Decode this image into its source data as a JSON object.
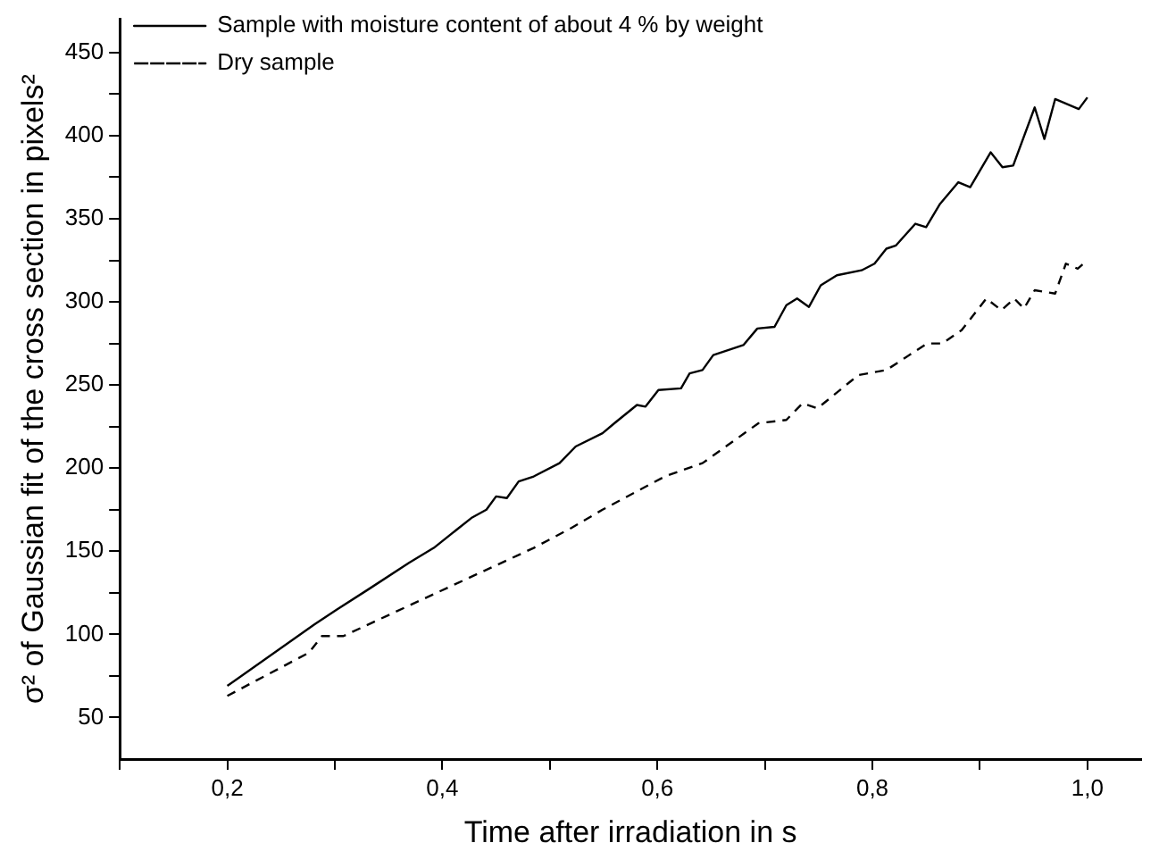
{
  "chart_data": {
    "type": "line",
    "xlabel": "Time after irradiation in s",
    "ylabel": "σ² of Gaussian fit of the cross section in pixels²",
    "xlim": [
      0.1,
      1.05
    ],
    "ylim": [
      25,
      470
    ],
    "xticks": [
      {
        "value": 0.1,
        "label": null
      },
      {
        "value": 0.2,
        "label": "0,2"
      },
      {
        "value": 0.3,
        "label": null
      },
      {
        "value": 0.4,
        "label": "0,4"
      },
      {
        "value": 0.5,
        "label": null
      },
      {
        "value": 0.6,
        "label": "0,6"
      },
      {
        "value": 0.7,
        "label": null
      },
      {
        "value": 0.8,
        "label": "0,8"
      },
      {
        "value": 0.9,
        "label": null
      },
      {
        "value": 1.0,
        "label": "1,0"
      }
    ],
    "yticks": [
      50,
      {
        "value": 75,
        "label": null
      },
      100,
      {
        "value": 125,
        "label": null
      },
      150,
      {
        "value": 175,
        "label": null
      },
      200,
      {
        "value": 225,
        "label": null
      },
      250,
      {
        "value": 275,
        "label": null
      },
      300,
      {
        "value": 325,
        "label": null
      },
      350,
      {
        "value": 375,
        "label": null
      },
      400,
      {
        "value": 425,
        "label": null
      },
      450
    ],
    "grid": false,
    "legend": "top left",
    "marker": "none",
    "series": [
      {
        "name": "Sample with moisture content of about 4 % by weight",
        "color": "#000000",
        "line_style": "solid",
        "x": [
          0.2,
          0.281,
          0.302,
          0.331,
          0.369,
          0.392,
          0.427,
          0.441,
          0.45,
          0.46,
          0.471,
          0.485,
          0.509,
          0.524,
          0.549,
          0.56,
          0.581,
          0.589,
          0.601,
          0.622,
          0.63,
          0.642,
          0.652,
          0.68,
          0.693,
          0.709,
          0.72,
          0.73,
          0.741,
          0.752,
          0.767,
          0.79,
          0.802,
          0.813,
          0.822,
          0.84,
          0.85,
          0.863,
          0.88,
          0.891,
          0.91,
          0.921,
          0.931,
          0.951,
          0.96,
          0.97,
          0.992,
          1.0
        ],
        "values": [
          69,
          106,
          115,
          127,
          143,
          152,
          170,
          175,
          183,
          182,
          192,
          195,
          203,
          213,
          221,
          227,
          238,
          237,
          247,
          248,
          257,
          259,
          268,
          274,
          284,
          285,
          298,
          302,
          297,
          310,
          316,
          319,
          323,
          332,
          334,
          347,
          345,
          359,
          372,
          369,
          390,
          381,
          382,
          417,
          398,
          422,
          416,
          423
        ]
      },
      {
        "name": "Dry sample",
        "color": "#000000",
        "line_style": "dashed",
        "x": [
          0.2,
          0.276,
          0.288,
          0.308,
          0.398,
          0.485,
          0.52,
          0.549,
          0.607,
          0.642,
          0.694,
          0.72,
          0.735,
          0.749,
          0.787,
          0.813,
          0.851,
          0.865,
          0.883,
          0.906,
          0.92,
          0.932,
          0.941,
          0.951,
          0.97,
          0.98,
          0.991,
          1.0
        ],
        "values": [
          63,
          89,
          99,
          99,
          126,
          152,
          164,
          175,
          195,
          203,
          227,
          229,
          239,
          236,
          256,
          259,
          275,
          275,
          283,
          302,
          295,
          302,
          296,
          307,
          305,
          323,
          320,
          325
        ]
      }
    ]
  }
}
